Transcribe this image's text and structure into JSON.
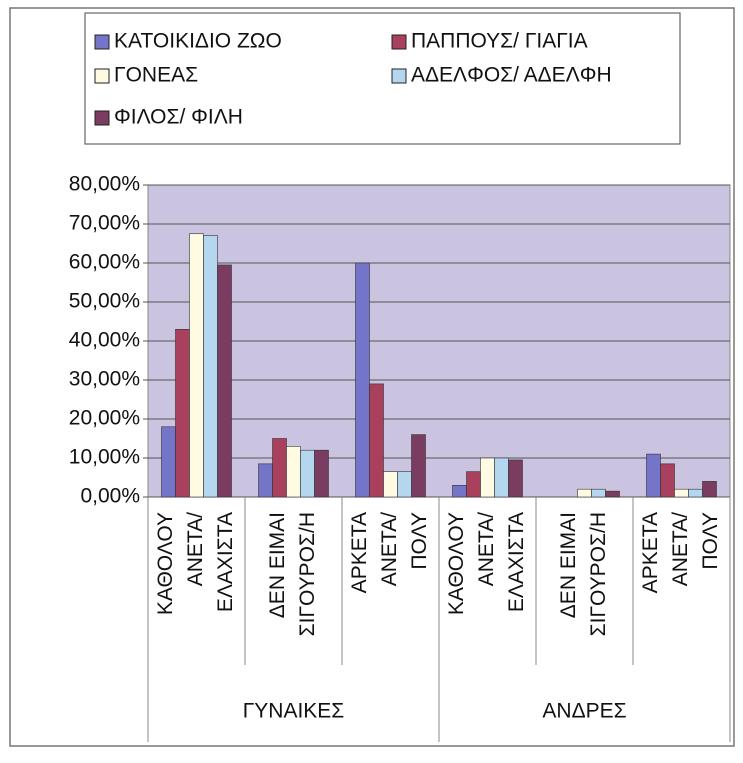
{
  "chart_data": {
    "type": "bar",
    "categories": [
      [
        "ΚΑΘΟΛΟΥ",
        "ΑΝΕΤΑ/",
        "ΕΛΑΧΙΣΤΑ"
      ],
      [
        "ΔΕΝ ΕΙΜΑΙ",
        "ΣΙΓΟΥΡΟΣ/Η"
      ],
      [
        "ΑΡΚΕΤΑ",
        "ΑΝΕΤΑ/",
        "ΠΟΛΥ"
      ],
      [
        "ΚΑΘΟΛΟΥ",
        "ΑΝΕΤΑ/",
        "ΕΛΑΧΙΣΤΑ"
      ],
      [
        "ΔΕΝ ΕΙΜΑΙ",
        "ΣΙΓΟΥΡΟΣ/Η"
      ],
      [
        "ΑΡΚΕΤΑ",
        "ΑΝΕΤΑ/",
        "ΠΟΛΥ"
      ]
    ],
    "category_groups": [
      "ΓΥΝΑΙΚΕΣ",
      "ΑΝΔΡΕΣ"
    ],
    "series": [
      {
        "name": "ΚΑΤΟΙΚΙΔΙΟ ΖΩΟ",
        "color": "#7474c8",
        "values": [
          18,
          8.5,
          60,
          3,
          0,
          11
        ]
      },
      {
        "name": "ΠΑΠΠΟΥΣ/ ΓΙΑΓΙΑ",
        "color": "#a8405e",
        "values": [
          43,
          15,
          29,
          6.5,
          0,
          8.5
        ]
      },
      {
        "name": "ΓΟΝΕΑΣ",
        "color": "#fffbe2",
        "values": [
          67.5,
          13,
          6.5,
          10,
          2,
          2
        ]
      },
      {
        "name": "ΑΔΕΛΦΟΣ/ ΑΔΕΛΦΗ",
        "color": "#b4d6ee",
        "values": [
          67,
          12,
          6.5,
          10,
          2,
          2
        ]
      },
      {
        "name": "ΦΙΛΟΣ/ ΦΙΛΗ",
        "color": "#7a3c60",
        "values": [
          59.5,
          12,
          16,
          9.5,
          1.5,
          4
        ]
      }
    ],
    "ylim": [
      0,
      80
    ],
    "yticks": [
      {
        "value": 0,
        "label": "0,00%"
      },
      {
        "value": 10,
        "label": "10,00%"
      },
      {
        "value": 20,
        "label": "20,00%"
      },
      {
        "value": 30,
        "label": "30,00%"
      },
      {
        "value": 40,
        "label": "40,00%"
      },
      {
        "value": 50,
        "label": "50,00%"
      },
      {
        "value": 60,
        "label": "60,00%"
      },
      {
        "value": 70,
        "label": "70,00%"
      },
      {
        "value": 80,
        "label": "80,00%"
      }
    ],
    "grid": true,
    "legend": "top"
  }
}
